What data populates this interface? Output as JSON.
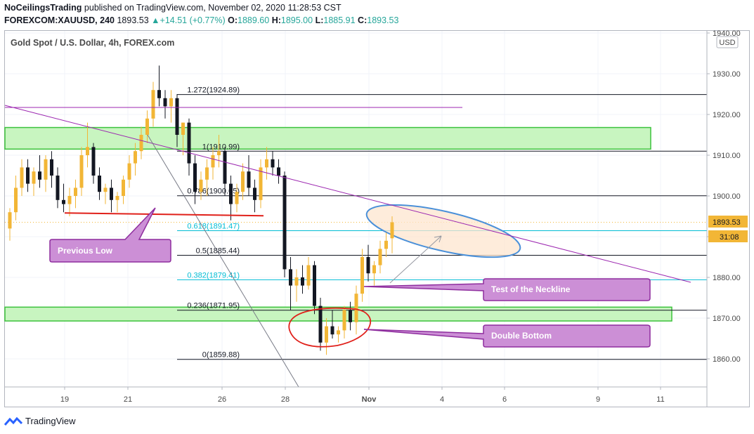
{
  "header": {
    "publisher": "NoCeilingsTrading",
    "published_text": "published on TradingView.com, November 02, 2020 11:28:53 CST",
    "symbol_line": "FOREXCOM:XAUUSD, 240",
    "last": "1893.53",
    "change": "+14.51 (+0.77%)",
    "o_label": "O:",
    "o": "1889.60",
    "h_label": "H:",
    "h": "1895.00",
    "l_label": "L:",
    "l": "1885.91",
    "c_label": "C:",
    "c": "1893.53"
  },
  "chart_title": "Gold Spot / U.S. Dollar, 4h, FOREX.com",
  "currency_badge": "USD",
  "price_tag": "1893.53",
  "countdown_tag": "31:08",
  "footer": {
    "brand": "TradingView",
    "logo_icon": "tradingview-logo-icon"
  },
  "colors": {
    "up": "#f2b636",
    "down": "#131722",
    "zone": "#c8f5c0",
    "zone_border": "#3cc23c",
    "callout": "#cc8fd6",
    "callout_border": "#8e2d9e",
    "trend": "#9c27b0",
    "ellipse_fill": "#fde6cf",
    "ellipse_border": "#4a90d9",
    "fib_cyan": "#00bcd4"
  },
  "chart_data": {
    "type": "candlestick",
    "title": "Gold Spot / U.S. Dollar, 4h, FOREX.com",
    "ylim": [
      1853,
      1942
    ],
    "y_ticks": [
      1860,
      1870,
      1880,
      1890,
      1900,
      1910,
      1920,
      1930,
      1940
    ],
    "y_tick_labels": [
      "1860.00",
      "1870.00",
      "1880.00",
      "1890.00",
      "1900.00",
      "1910.00",
      "1920.00",
      "1930.00",
      "1940.00"
    ],
    "x_tick_labels": [
      "19",
      "21",
      "26",
      "28",
      "Nov",
      "4",
      "6",
      "9",
      "11"
    ],
    "fib_levels": [
      {
        "label": "1.272(1924.89)",
        "value": 1924.89,
        "cyan": false
      },
      {
        "label": "1(1910.99)",
        "value": 1910.99,
        "cyan": false
      },
      {
        "label": "0.786(1900.05)",
        "value": 1900.05,
        "cyan": false
      },
      {
        "label": "0.618(1891.47)",
        "value": 1891.47,
        "cyan": true
      },
      {
        "label": "0.5(1885.44)",
        "value": 1885.44,
        "cyan": false
      },
      {
        "label": "0.382(1879.41)",
        "value": 1879.41,
        "cyan": true
      },
      {
        "label": "0.236(1871.95)",
        "value": 1871.95,
        "cyan": false
      },
      {
        "label": "0(1859.88)",
        "value": 1859.88,
        "cyan": false
      }
    ],
    "zones": [
      {
        "low": 1911.5,
        "high": 1916.8
      },
      {
        "low": 1869.3,
        "high": 1872.7
      }
    ],
    "previous_low_level": 1896.0,
    "current_price": 1893.53,
    "candles": [
      [
        1892,
        1897,
        1889,
        1896
      ],
      [
        1896,
        1905,
        1894,
        1902
      ],
      [
        1902,
        1909,
        1900,
        1907
      ],
      [
        1907,
        1909,
        1901,
        1903
      ],
      [
        1903,
        1907,
        1900,
        1906
      ],
      [
        1906,
        1910,
        1902,
        1904
      ],
      [
        1904,
        1910,
        1901,
        1909
      ],
      [
        1909,
        1911,
        1902,
        1905
      ],
      [
        1905,
        1907,
        1897,
        1899
      ],
      [
        1899,
        1903,
        1896,
        1898
      ],
      [
        1898,
        1902,
        1895,
        1900
      ],
      [
        1900,
        1904,
        1897,
        1902
      ],
      [
        1902,
        1912,
        1900,
        1910
      ],
      [
        1910,
        1918,
        1907,
        1912
      ],
      [
        1912,
        1913,
        1903,
        1905
      ],
      [
        1905,
        1907,
        1899,
        1901
      ],
      [
        1901,
        1903,
        1898,
        1902
      ],
      [
        1902,
        1904,
        1896,
        1899
      ],
      [
        1899,
        1901,
        1896,
        1900
      ],
      [
        1900,
        1905,
        1898,
        1904
      ],
      [
        1904,
        1910,
        1902,
        1908
      ],
      [
        1908,
        1913,
        1905,
        1911
      ],
      [
        1911,
        1917,
        1909,
        1915
      ],
      [
        1915,
        1921,
        1913,
        1919
      ],
      [
        1919,
        1928,
        1917,
        1926
      ],
      [
        1926,
        1932,
        1922,
        1924
      ],
      [
        1924,
        1926,
        1919,
        1922
      ],
      [
        1922,
        1926,
        1918,
        1924
      ],
      [
        1924,
        1925,
        1912,
        1915
      ],
      [
        1915,
        1918,
        1910,
        1918
      ],
      [
        1918,
        1919,
        1905,
        1908
      ],
      [
        1908,
        1910,
        1898,
        1901
      ],
      [
        1901,
        1906,
        1899,
        1904
      ],
      [
        1904,
        1909,
        1900,
        1907
      ],
      [
        1907,
        1912,
        1904,
        1910
      ],
      [
        1910,
        1915,
        1907,
        1911
      ],
      [
        1911,
        1912,
        1900,
        1903
      ],
      [
        1903,
        1905,
        1894,
        1898
      ],
      [
        1898,
        1903,
        1896,
        1901
      ],
      [
        1901,
        1908,
        1899,
        1906
      ],
      [
        1906,
        1910,
        1900,
        1902
      ],
      [
        1902,
        1904,
        1896,
        1899
      ],
      [
        1899,
        1909,
        1897,
        1907
      ],
      [
        1907,
        1912,
        1904,
        1909
      ],
      [
        1909,
        1911,
        1905,
        1907
      ],
      [
        1907,
        1909,
        1903,
        1905
      ],
      [
        1905,
        1906,
        1880,
        1882
      ],
      [
        1882,
        1885,
        1872,
        1878
      ],
      [
        1878,
        1882,
        1874,
        1880
      ],
      [
        1880,
        1883,
        1876,
        1878
      ],
      [
        1878,
        1885,
        1877,
        1883
      ],
      [
        1883,
        1884,
        1871,
        1873
      ],
      [
        1873,
        1875,
        1862,
        1864
      ],
      [
        1864,
        1870,
        1861,
        1868
      ],
      [
        1868,
        1872,
        1865,
        1866
      ],
      [
        1866,
        1868,
        1864,
        1867
      ],
      [
        1867,
        1873,
        1865,
        1872
      ],
      [
        1872,
        1874,
        1867,
        1869
      ],
      [
        1869,
        1878,
        1866,
        1876
      ],
      [
        1876,
        1887,
        1874,
        1885
      ],
      [
        1885,
        1888,
        1879,
        1881
      ],
      [
        1881,
        1884,
        1878,
        1883
      ],
      [
        1883,
        1889,
        1881,
        1887
      ],
      [
        1887,
        1891,
        1885,
        1889
      ],
      [
        1889.6,
        1895,
        1885.91,
        1893.53
      ]
    ],
    "annotations": [
      {
        "label": "Previous Low"
      },
      {
        "label": "Test of the Neckline"
      },
      {
        "label": "Double Bottom"
      }
    ]
  }
}
